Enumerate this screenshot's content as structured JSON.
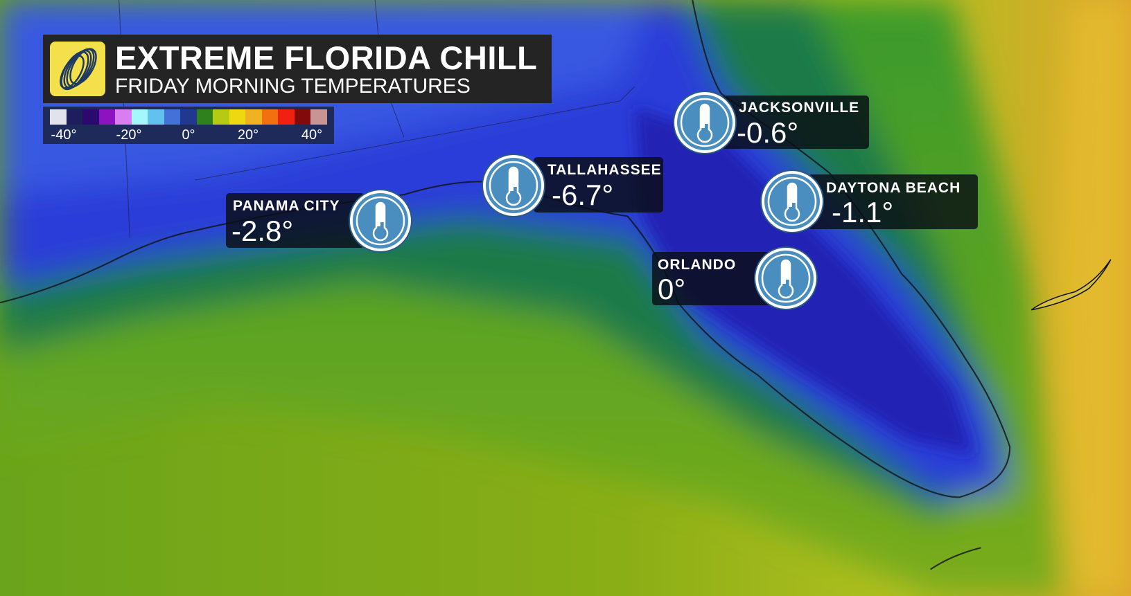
{
  "header": {
    "title": "EXTREME FLORIDA CHILL",
    "subtitle": "FRIDAY MORNING TEMPERATURES",
    "logo_icon": "weather-network-swirl-logo"
  },
  "legend": {
    "unit": "°C",
    "colors": [
      "#e2e2ea",
      "#1e1e5c",
      "#2a0a6e",
      "#8c12c2",
      "#da7cf2",
      "#a4f8fc",
      "#62c2ee",
      "#4272d8",
      "#22388e",
      "#30801e",
      "#b6ca14",
      "#eed810",
      "#eeb222",
      "#f27010",
      "#f22010",
      "#820a0a",
      "#c89494"
    ],
    "tick_labels": [
      "-40°",
      "-20°",
      "0°",
      "20°",
      "40°"
    ]
  },
  "cities": [
    {
      "name": "JACKSONVILLE",
      "temp": "-0.6°"
    },
    {
      "name": "TALLAHASSEE",
      "temp": "-6.7°"
    },
    {
      "name": "PANAMA CITY",
      "temp": "-2.8°"
    },
    {
      "name": "DAYTONA BEACH",
      "temp": "-1.1°"
    },
    {
      "name": "ORLANDO",
      "temp": "0°"
    }
  ],
  "icon": "thermometer-icon"
}
